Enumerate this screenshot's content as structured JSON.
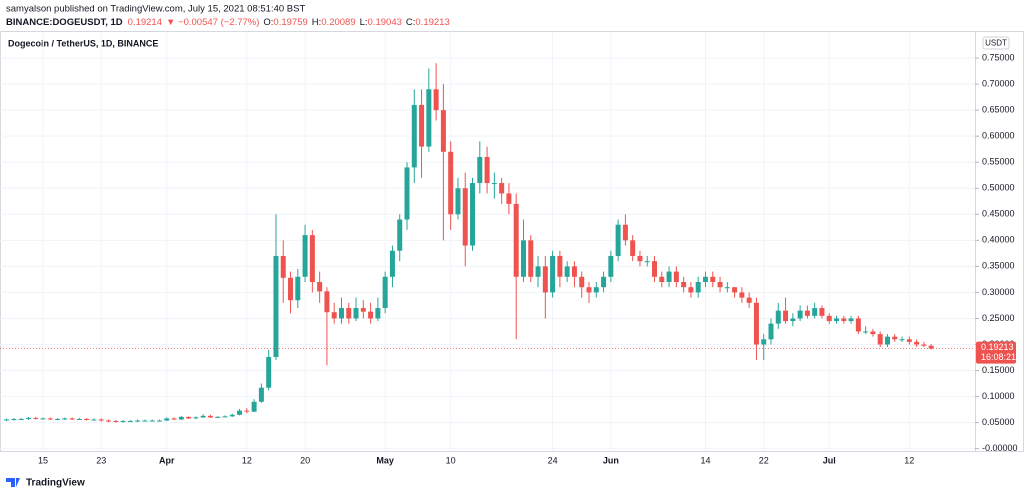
{
  "header": {
    "publisher": "samyalson published on TradingView.com, July 15, 2021 08:51:40 BST",
    "symbol": "BINANCE:DOGEUSDT, 1D",
    "last": 0.19214,
    "change": "▼ −0.00547 (−2.77%)",
    "ohlc": [
      {
        "label": "O:",
        "value": 0.19759
      },
      {
        "label": "H:",
        "value": 0.20089
      },
      {
        "label": "L:",
        "value": 0.19043
      },
      {
        "label": "C:",
        "value": 0.19213
      }
    ]
  },
  "footer": {
    "brand": "TradingView"
  },
  "chart_data": {
    "type": "candlestick",
    "title": "Dogecoin / TetherUS, 1D, BINANCE",
    "currency": "USDT",
    "up_color": "#26a69a",
    "down_color": "#ef5350",
    "grid": true,
    "last_price": 0.19213,
    "countdown": "16:08:21",
    "categories": [
      null,
      null,
      null,
      null,
      null,
      "15",
      null,
      null,
      null,
      null,
      null,
      null,
      null,
      "23",
      null,
      null,
      null,
      null,
      null,
      null,
      null,
      null,
      "Apr",
      null,
      null,
      null,
      null,
      null,
      null,
      null,
      null,
      null,
      null,
      "12",
      null,
      null,
      null,
      null,
      null,
      null,
      null,
      "20",
      null,
      null,
      null,
      null,
      null,
      null,
      null,
      null,
      null,
      null,
      "May",
      null,
      null,
      null,
      null,
      null,
      null,
      null,
      null,
      "10",
      null,
      null,
      null,
      null,
      null,
      null,
      null,
      null,
      null,
      null,
      null,
      null,
      null,
      "24",
      null,
      null,
      null,
      null,
      null,
      null,
      null,
      "Jun",
      null,
      null,
      null,
      null,
      null,
      null,
      null,
      null,
      null,
      null,
      null,
      null,
      "14",
      null,
      null,
      null,
      null,
      null,
      null,
      null,
      "22",
      null,
      null,
      null,
      null,
      null,
      null,
      null,
      null,
      "Jul",
      null,
      null,
      null,
      null,
      null,
      null,
      null,
      null,
      null,
      null,
      "12",
      null,
      null,
      null
    ],
    "open": [
      0.055,
      0.056,
      0.057,
      0.057,
      0.059,
      0.058,
      0.058,
      0.057,
      0.057,
      0.058,
      0.057,
      0.057,
      0.056,
      0.056,
      0.054,
      0.053,
      0.052,
      0.053,
      0.053,
      0.054,
      0.054,
      0.054,
      0.054,
      0.058,
      0.056,
      0.061,
      0.058,
      0.06,
      0.063,
      0.06,
      0.061,
      0.062,
      0.065,
      0.073,
      0.071,
      0.09,
      0.117,
      0.176,
      0.37,
      0.328,
      0.285,
      0.33,
      0.41,
      0.32,
      0.302,
      0.262,
      0.25,
      0.27,
      0.25,
      0.27,
      0.263,
      0.25,
      0.27,
      0.33,
      0.38,
      0.44,
      0.54,
      0.66,
      0.58,
      0.69,
      0.65,
      0.57,
      0.45,
      0.5,
      0.39,
      0.51,
      0.56,
      0.51,
      0.51,
      0.49,
      0.47,
      0.33,
      0.4,
      0.33,
      0.35,
      0.3,
      0.37,
      0.33,
      0.35,
      0.33,
      0.31,
      0.3,
      0.31,
      0.33,
      0.37,
      0.43,
      0.4,
      0.37,
      0.36,
      0.36,
      0.33,
      0.32,
      0.34,
      0.32,
      0.31,
      0.3,
      0.32,
      0.33,
      0.32,
      0.31,
      0.31,
      0.3,
      0.29,
      0.28,
      0.2,
      0.21,
      0.24,
      0.265,
      0.245,
      0.25,
      0.265,
      0.255,
      0.27,
      0.255,
      0.245,
      0.25,
      0.245,
      0.25,
      0.225,
      0.225,
      0.22,
      0.2,
      0.215,
      0.21,
      0.21,
      0.205,
      0.2,
      0.19759
    ],
    "high": [
      0.058,
      0.059,
      0.059,
      0.061,
      0.061,
      0.06,
      0.06,
      0.059,
      0.06,
      0.06,
      0.059,
      0.059,
      0.058,
      0.058,
      0.056,
      0.055,
      0.055,
      0.055,
      0.056,
      0.056,
      0.056,
      0.056,
      0.06,
      0.06,
      0.063,
      0.062,
      0.062,
      0.066,
      0.065,
      0.063,
      0.064,
      0.067,
      0.076,
      0.078,
      0.095,
      0.125,
      0.19,
      0.45,
      0.4,
      0.34,
      0.345,
      0.43,
      0.42,
      0.34,
      0.31,
      0.28,
      0.29,
      0.28,
      0.29,
      0.285,
      0.28,
      0.29,
      0.34,
      0.39,
      0.45,
      0.55,
      0.69,
      0.69,
      0.73,
      0.74,
      0.7,
      0.59,
      0.52,
      0.53,
      0.52,
      0.59,
      0.58,
      0.53,
      0.52,
      0.51,
      0.49,
      0.44,
      0.41,
      0.37,
      0.37,
      0.38,
      0.38,
      0.36,
      0.36,
      0.34,
      0.32,
      0.32,
      0.34,
      0.38,
      0.44,
      0.45,
      0.41,
      0.38,
      0.37,
      0.37,
      0.34,
      0.35,
      0.35,
      0.33,
      0.32,
      0.33,
      0.34,
      0.34,
      0.33,
      0.32,
      0.31,
      0.31,
      0.3,
      0.29,
      0.22,
      0.25,
      0.28,
      0.29,
      0.26,
      0.275,
      0.275,
      0.28,
      0.275,
      0.26,
      0.255,
      0.255,
      0.255,
      0.255,
      0.235,
      0.23,
      0.225,
      0.22,
      0.22,
      0.215,
      0.215,
      0.21,
      0.205,
      0.20089
    ],
    "low": [
      0.053,
      0.054,
      0.055,
      0.055,
      0.056,
      0.056,
      0.055,
      0.055,
      0.055,
      0.055,
      0.055,
      0.054,
      0.054,
      0.052,
      0.051,
      0.05,
      0.05,
      0.051,
      0.051,
      0.052,
      0.052,
      0.052,
      0.053,
      0.055,
      0.055,
      0.057,
      0.057,
      0.059,
      0.059,
      0.059,
      0.06,
      0.061,
      0.064,
      0.068,
      0.07,
      0.088,
      0.112,
      0.17,
      0.28,
      0.26,
      0.27,
      0.32,
      0.3,
      0.28,
      0.16,
      0.24,
      0.24,
      0.24,
      0.245,
      0.25,
      0.24,
      0.245,
      0.26,
      0.31,
      0.36,
      0.42,
      0.51,
      0.52,
      0.57,
      0.63,
      0.4,
      0.42,
      0.44,
      0.35,
      0.38,
      0.49,
      0.49,
      0.48,
      0.47,
      0.45,
      0.21,
      0.32,
      0.32,
      0.31,
      0.25,
      0.29,
      0.31,
      0.32,
      0.31,
      0.29,
      0.28,
      0.29,
      0.3,
      0.32,
      0.36,
      0.39,
      0.36,
      0.35,
      0.35,
      0.32,
      0.31,
      0.31,
      0.31,
      0.3,
      0.29,
      0.29,
      0.31,
      0.31,
      0.3,
      0.3,
      0.29,
      0.28,
      0.27,
      0.17,
      0.17,
      0.2,
      0.23,
      0.24,
      0.235,
      0.245,
      0.25,
      0.25,
      0.25,
      0.24,
      0.24,
      0.24,
      0.24,
      0.22,
      0.22,
      0.215,
      0.195,
      0.195,
      0.205,
      0.205,
      0.2,
      0.195,
      0.195,
      0.19043
    ],
    "close": [
      0.056,
      0.057,
      0.057,
      0.059,
      0.058,
      0.058,
      0.057,
      0.057,
      0.058,
      0.057,
      0.057,
      0.056,
      0.056,
      0.054,
      0.053,
      0.052,
      0.053,
      0.053,
      0.054,
      0.054,
      0.054,
      0.054,
      0.058,
      0.056,
      0.061,
      0.058,
      0.06,
      0.063,
      0.06,
      0.061,
      0.062,
      0.065,
      0.073,
      0.071,
      0.09,
      0.117,
      0.176,
      0.37,
      0.328,
      0.285,
      0.33,
      0.41,
      0.32,
      0.302,
      0.262,
      0.25,
      0.27,
      0.25,
      0.27,
      0.263,
      0.25,
      0.27,
      0.33,
      0.38,
      0.44,
      0.54,
      0.66,
      0.58,
      0.69,
      0.65,
      0.57,
      0.45,
      0.5,
      0.39,
      0.51,
      0.56,
      0.51,
      0.51,
      0.49,
      0.47,
      0.33,
      0.4,
      0.33,
      0.35,
      0.3,
      0.37,
      0.33,
      0.35,
      0.33,
      0.31,
      0.3,
      0.31,
      0.33,
      0.37,
      0.43,
      0.4,
      0.37,
      0.36,
      0.36,
      0.33,
      0.32,
      0.34,
      0.32,
      0.31,
      0.3,
      0.32,
      0.33,
      0.32,
      0.31,
      0.31,
      0.3,
      0.29,
      0.28,
      0.2,
      0.21,
      0.24,
      0.265,
      0.245,
      0.25,
      0.265,
      0.255,
      0.27,
      0.255,
      0.245,
      0.25,
      0.245,
      0.25,
      0.225,
      0.225,
      0.22,
      0.2,
      0.215,
      0.21,
      0.21,
      0.205,
      0.2,
      0.19759,
      0.19213
    ],
    "ylim": [
      -0.0045,
      0.8
    ],
    "yticks": [
      {
        "value": 0,
        "label": "-0.00000"
      },
      {
        "value": 0.05,
        "label": "0.05000"
      },
      {
        "value": 0.1,
        "label": "0.10000"
      },
      {
        "value": 0.15,
        "label": "0.15000"
      },
      {
        "value": 0.2,
        "label": "0.20000"
      },
      {
        "value": 0.25,
        "label": "0.25000"
      },
      {
        "value": 0.3,
        "label": "0.30000"
      },
      {
        "value": 0.35,
        "label": "0.35000"
      },
      {
        "value": 0.4,
        "label": "0.40000"
      },
      {
        "value": 0.45,
        "label": "0.45000"
      },
      {
        "value": 0.5,
        "label": "0.50000"
      },
      {
        "value": 0.55,
        "label": "0.55000"
      },
      {
        "value": 0.6,
        "label": "0.60000"
      },
      {
        "value": 0.65,
        "label": "0.65000"
      },
      {
        "value": 0.7,
        "label": "0.70000"
      },
      {
        "value": 0.75,
        "label": "0.75000"
      }
    ]
  }
}
